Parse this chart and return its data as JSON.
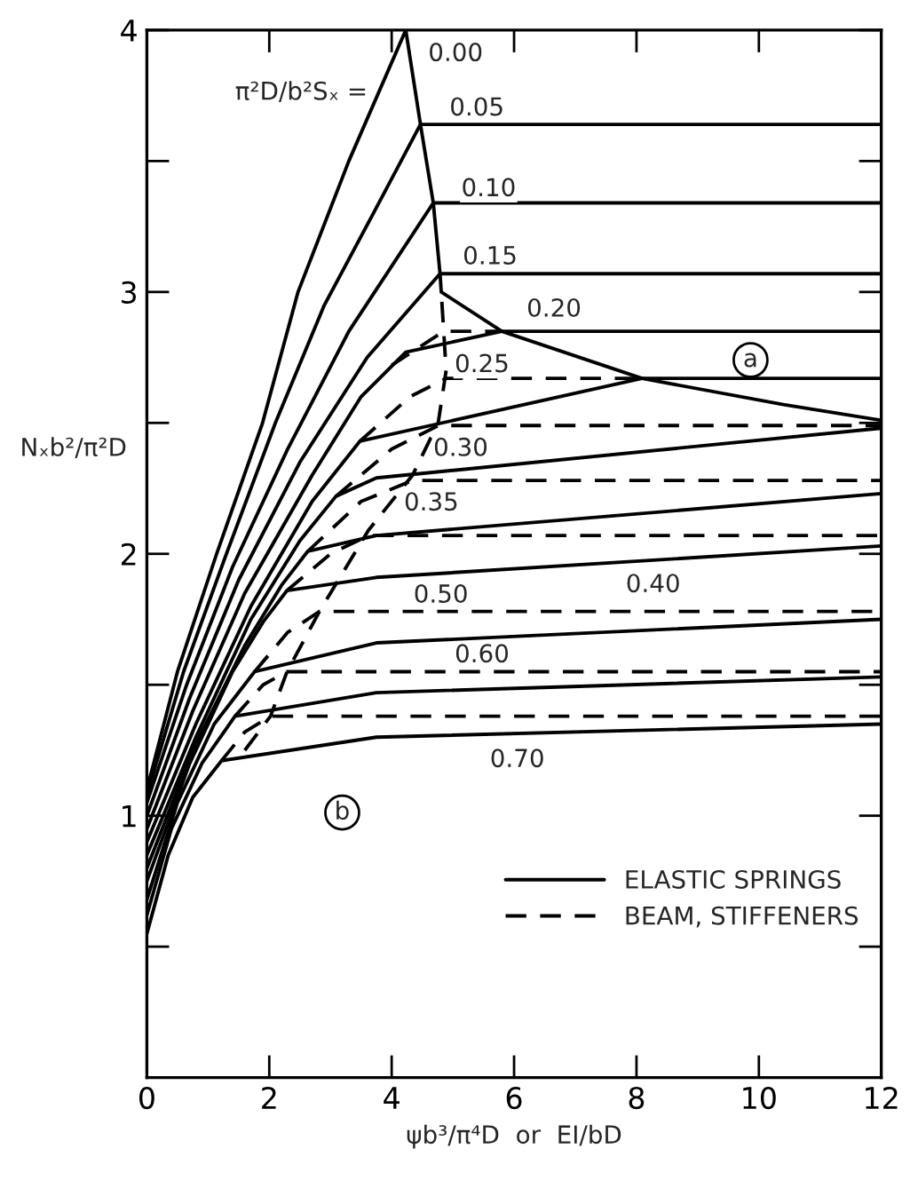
{
  "chart_data": {
    "type": "line",
    "xlabel": "ψb³/π⁴D  or  EI/bD",
    "ylabel": "Nₓb²/π²D",
    "xlim": [
      0,
      12
    ],
    "ylim": [
      0,
      4
    ],
    "xticks": [
      0,
      2,
      4,
      6,
      8,
      10,
      12
    ],
    "yticks": [
      {
        "value": 0,
        "label": null
      },
      {
        "value": 0.5,
        "label": null
      },
      1,
      {
        "value": 1.5,
        "label": null
      },
      2,
      {
        "value": 2.5,
        "label": null
      },
      3,
      {
        "value": 3.5,
        "label": null
      },
      4
    ],
    "legend": "lower right",
    "series": [
      {
        "name": "ELASTIC SPRINGS",
        "color": "#000000",
        "line_style": "solid",
        "x": [
          0,
          0.5,
          1.14,
          1.89,
          2.47,
          3.3,
          4.23
        ],
        "values": [
          1.1,
          1.55,
          2.0,
          2.5,
          3.0,
          3.5,
          4.0
        ]
      },
      {
        "color": "#000000",
        "line_style": "solid",
        "x": [
          0,
          0.6,
          1.3,
          2.1,
          2.9,
          3.7,
          4.47,
          12
        ],
        "values": [
          1.08,
          1.55,
          2.0,
          2.5,
          2.95,
          3.3,
          3.64,
          3.64
        ]
      },
      {
        "color": "#000000",
        "line_style": "solid",
        "x": [
          0,
          0.65,
          1.4,
          2.3,
          3.3,
          4.68,
          12
        ],
        "values": [
          1.05,
          1.5,
          1.95,
          2.4,
          2.85,
          3.34,
          3.34
        ]
      },
      {
        "color": "#000000",
        "line_style": "solid",
        "x": [
          0,
          0.7,
          1.5,
          2.5,
          3.6,
          4.79,
          12
        ],
        "values": [
          1.0,
          1.45,
          1.9,
          2.35,
          2.75,
          3.07,
          3.07
        ]
      },
      {
        "color": "#000000",
        "line_style": "solid",
        "x": [
          0,
          0.75,
          1.6,
          2.7,
          3.5,
          4.23,
          5.8,
          12
        ],
        "values": [
          0.95,
          1.4,
          1.85,
          2.3,
          2.6,
          2.77,
          2.85,
          2.85
        ]
      },
      {
        "color": "#000000",
        "line_style": "solid",
        "x": [
          0,
          0.8,
          1.7,
          2.7,
          3.48,
          8.09,
          12
        ],
        "values": [
          0.9,
          1.35,
          1.8,
          2.2,
          2.43,
          2.67,
          2.67
        ]
      },
      {
        "color": "#000000",
        "line_style": "solid",
        "x": [
          0,
          0.8,
          1.7,
          2.5,
          3.09,
          3.75,
          12
        ],
        "values": [
          0.85,
          1.3,
          1.75,
          2.05,
          2.22,
          2.29,
          2.48
        ]
      },
      {
        "color": "#000000",
        "line_style": "solid",
        "x": [
          0,
          0.75,
          1.6,
          2.2,
          2.63,
          3.75,
          12
        ],
        "values": [
          0.8,
          1.25,
          1.65,
          1.88,
          2.01,
          2.07,
          2.23
        ]
      },
      {
        "color": "#000000",
        "line_style": "solid",
        "x": [
          0,
          0.7,
          1.4,
          1.9,
          2.29,
          3.75,
          12
        ],
        "values": [
          0.75,
          1.2,
          1.55,
          1.74,
          1.86,
          1.91,
          2.03
        ]
      },
      {
        "color": "#000000",
        "line_style": "solid",
        "x": [
          0,
          0.5,
          1.1,
          1.76,
          3.75,
          12
        ],
        "values": [
          0.68,
          1.05,
          1.35,
          1.55,
          1.66,
          1.75
        ]
      },
      {
        "color": "#000000",
        "line_style": "solid",
        "x": [
          0,
          0.4,
          0.9,
          1.44,
          3.75,
          12
        ],
        "values": [
          0.62,
          0.95,
          1.2,
          1.38,
          1.47,
          1.53
        ]
      },
      {
        "color": "#000000",
        "line_style": "solid",
        "x": [
          0,
          0.35,
          0.75,
          1.22,
          3.75,
          12
        ],
        "values": [
          0.55,
          0.85,
          1.07,
          1.21,
          1.3,
          1.35
        ]
      },
      {
        "name": "BEAM, STIFFENERS",
        "color": "#000000",
        "line_style": "dashed",
        "x": [
          4.0,
          4.85,
          5.8
        ],
        "values": [
          2.72,
          2.85,
          2.85
        ]
      },
      {
        "color": "#000000",
        "line_style": "dashed",
        "x": [
          3.48,
          4.3,
          4.89,
          8.09
        ],
        "values": [
          2.43,
          2.6,
          2.67,
          2.67
        ]
      },
      {
        "color": "#000000",
        "line_style": "dashed",
        "x": [
          3.09,
          4.0,
          4.76,
          12
        ],
        "values": [
          2.22,
          2.4,
          2.49,
          2.49
        ]
      },
      {
        "color": "#000000",
        "line_style": "dashed",
        "x": [
          2.63,
          3.5,
          4.34,
          12
        ],
        "values": [
          2.01,
          2.2,
          2.28,
          2.28
        ]
      },
      {
        "color": "#000000",
        "line_style": "dashed",
        "x": [
          2.29,
          3.0,
          3.62,
          12
        ],
        "values": [
          1.86,
          2.0,
          2.07,
          2.07
        ]
      },
      {
        "color": "#000000",
        "line_style": "dashed",
        "x": [
          1.76,
          2.3,
          2.82,
          12
        ],
        "values": [
          1.55,
          1.7,
          1.78,
          1.78
        ]
      },
      {
        "color": "#000000",
        "line_style": "dashed",
        "x": [
          1.44,
          1.9,
          2.29,
          12
        ],
        "values": [
          1.38,
          1.5,
          1.55,
          1.55
        ]
      },
      {
        "color": "#000000",
        "line_style": "dashed",
        "x": [
          1.22,
          1.6,
          2.02,
          12
        ],
        "values": [
          1.21,
          1.32,
          1.38,
          1.38
        ]
      },
      {
        "color": "#000000",
        "line_style": "solid",
        "x": [
          4.23,
          4.47,
          4.68,
          4.79,
          4.81,
          5.8,
          8.09,
          10.4,
          12
        ],
        "values": [
          4.0,
          3.64,
          3.34,
          3.07,
          3.0,
          2.85,
          2.67,
          2.57,
          2.51
        ]
      },
      {
        "color": "#000000",
        "line_style": "dashed",
        "x": [
          1.6,
          2.02,
          2.29,
          2.82,
          3.62,
          4.34,
          4.76,
          4.89,
          4.85,
          4.81
        ],
        "values": [
          1.25,
          1.38,
          1.55,
          1.78,
          2.09,
          2.3,
          2.5,
          2.7,
          2.85,
          3.0
        ]
      }
    ],
    "annotations": [
      "π²D/b²Sₓ =",
      "0.00",
      "0.05",
      "0.10",
      "0.15",
      "0.20",
      "0.25",
      "0.30",
      "0.35",
      "0.40",
      "0.50",
      "0.60",
      "0.70",
      "a",
      "b"
    ]
  }
}
